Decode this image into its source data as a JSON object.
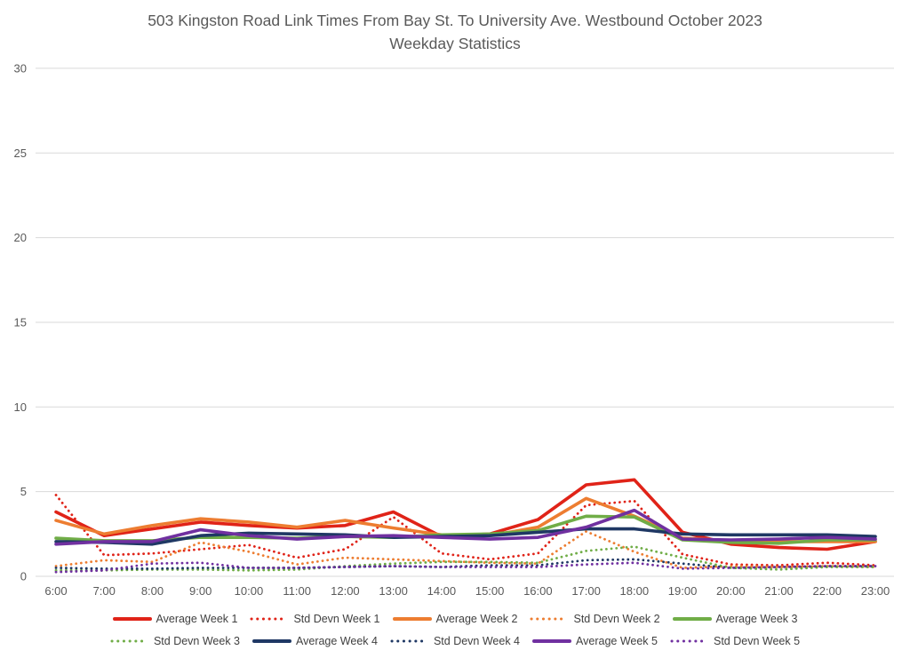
{
  "title": {
    "line1": "503 Kingston Road Link Times From Bay St. To University Ave. Westbound October 2023",
    "line2": "Weekday Statistics"
  },
  "axes": {
    "y_ticks": [
      "0",
      "5",
      "10",
      "15",
      "20",
      "25",
      "30"
    ],
    "x_ticks": [
      "6:00",
      "7:00",
      "8:00",
      "9:00",
      "10:00",
      "11:00",
      "12:00",
      "13:00",
      "14:00",
      "15:00",
      "16:00",
      "17:00",
      "18:00",
      "19:00",
      "20:00",
      "21:00",
      "22:00",
      "23:00"
    ]
  },
  "style": {
    "gridline_color": "#d9d9d9",
    "axis_text_color": "#595959",
    "title_color": "#595959",
    "background": "#ffffff"
  },
  "chart_data": {
    "type": "line",
    "title": "503 Kingston Road Link Times From Bay St. To University Ave. Westbound October 2023 Weekday Statistics",
    "xlabel": "",
    "ylabel": "",
    "ylim": [
      0,
      30
    ],
    "yticks": [
      0,
      5,
      10,
      15,
      20,
      25,
      30
    ],
    "grid": "horizontal",
    "legend_position": "bottom",
    "categories": [
      "6:00",
      "7:00",
      "8:00",
      "9:00",
      "10:00",
      "11:00",
      "12:00",
      "13:00",
      "14:00",
      "15:00",
      "16:00",
      "17:00",
      "18:00",
      "19:00",
      "20:00",
      "21:00",
      "22:00",
      "23:00"
    ],
    "series": [
      {
        "name": "Average Week 1",
        "color": "#e02318",
        "style": "solid",
        "values": [
          3.8,
          2.4,
          2.8,
          3.2,
          3.0,
          2.85,
          3.0,
          3.8,
          2.35,
          2.5,
          3.35,
          5.4,
          5.7,
          2.6,
          1.9,
          1.7,
          1.6,
          2.05
        ]
      },
      {
        "name": "Std Devn Week 1",
        "color": "#e02318",
        "style": "dotted",
        "values": [
          4.8,
          1.25,
          1.35,
          1.6,
          1.85,
          1.1,
          1.6,
          3.5,
          1.35,
          1.0,
          1.35,
          4.2,
          4.45,
          1.3,
          0.7,
          0.65,
          0.8,
          0.65
        ]
      },
      {
        "name": "Average Week 2",
        "color": "#ed7d31",
        "style": "solid",
        "values": [
          3.3,
          2.5,
          3.0,
          3.4,
          3.2,
          2.9,
          3.3,
          2.85,
          2.45,
          2.4,
          2.9,
          4.6,
          3.55,
          2.25,
          2.1,
          2.05,
          2.05,
          2.05
        ]
      },
      {
        "name": "Std Devn Week 2",
        "color": "#ed7d31",
        "style": "dotted",
        "values": [
          0.6,
          0.95,
          0.85,
          2.0,
          1.45,
          0.7,
          1.1,
          1.0,
          0.9,
          0.8,
          0.75,
          2.65,
          1.45,
          0.5,
          0.6,
          0.55,
          0.6,
          0.55
        ]
      },
      {
        "name": "Average Week 3",
        "color": "#70ad47",
        "style": "solid",
        "values": [
          2.25,
          2.1,
          2.1,
          2.3,
          2.3,
          2.25,
          2.35,
          2.3,
          2.45,
          2.5,
          2.7,
          3.55,
          3.5,
          2.15,
          2.0,
          1.95,
          2.15,
          2.15
        ]
      },
      {
        "name": "Std Devn Week 3",
        "color": "#70ad47",
        "style": "dotted",
        "values": [
          0.35,
          0.35,
          0.4,
          0.4,
          0.35,
          0.4,
          0.6,
          0.75,
          0.85,
          0.85,
          0.8,
          1.5,
          1.75,
          1.1,
          0.5,
          0.4,
          0.55,
          0.55
        ]
      },
      {
        "name": "Average Week 4",
        "color": "#1f3864",
        "style": "solid",
        "values": [
          2.05,
          2.0,
          1.9,
          2.4,
          2.55,
          2.5,
          2.45,
          2.3,
          2.35,
          2.4,
          2.6,
          2.8,
          2.8,
          2.5,
          2.45,
          2.45,
          2.45,
          2.35
        ]
      },
      {
        "name": "Std Devn Week 4",
        "color": "#1f3864",
        "style": "dotted",
        "values": [
          0.5,
          0.45,
          0.45,
          0.5,
          0.5,
          0.5,
          0.55,
          0.6,
          0.55,
          0.65,
          0.65,
          0.95,
          1.0,
          0.75,
          0.5,
          0.55,
          0.6,
          0.6
        ]
      },
      {
        "name": "Average Week 5",
        "color": "#7030a0",
        "style": "solid",
        "values": [
          1.9,
          2.05,
          2.05,
          2.75,
          2.4,
          2.2,
          2.35,
          2.4,
          2.3,
          2.2,
          2.3,
          2.9,
          3.9,
          2.2,
          2.15,
          2.2,
          2.3,
          2.2
        ]
      },
      {
        "name": "Std Devn Week 5",
        "color": "#7030a0",
        "style": "dotted",
        "values": [
          0.25,
          0.35,
          0.75,
          0.8,
          0.5,
          0.5,
          0.55,
          0.6,
          0.55,
          0.55,
          0.55,
          0.7,
          0.8,
          0.45,
          0.5,
          0.55,
          0.6,
          0.6
        ]
      }
    ]
  },
  "legend": {
    "row1": [
      "Average Week 1",
      "Std Devn Week 1",
      "Average Week 2",
      "Std Devn Week 2",
      "Average Week 3"
    ],
    "row2": [
      "Std Devn Week 3",
      "Average Week 4",
      "Std Devn Week 4",
      "Average Week 5",
      "Std Devn Week 5"
    ]
  }
}
